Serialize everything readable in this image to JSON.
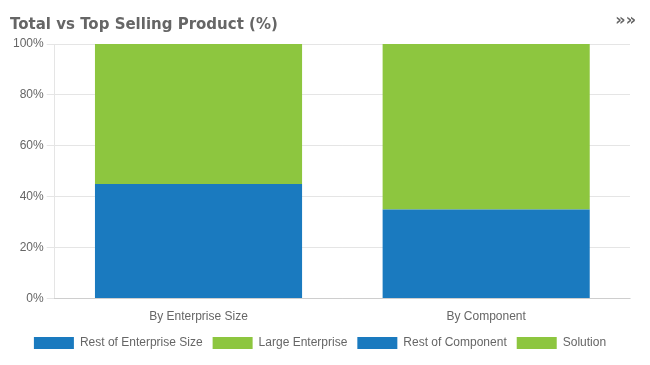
{
  "chart_data": {
    "type": "bar",
    "title": "Total vs Top Selling Product (%)",
    "categories": [
      "By Enterprise Size",
      "By Component"
    ],
    "series": [
      {
        "name": "Rest of Enterprise Size",
        "color": "#1a7abf",
        "values": [
          45,
          null
        ]
      },
      {
        "name": "Large Enterprise",
        "color": "#8dc63f",
        "values": [
          55,
          null
        ]
      },
      {
        "name": "Rest of Component",
        "color": "#1a7abf",
        "values": [
          null,
          35
        ]
      },
      {
        "name": "Solution",
        "color": "#8dc63f",
        "values": [
          null,
          65
        ]
      }
    ],
    "stacked": true,
    "ylim": [
      0,
      100
    ],
    "yticks": [
      {
        "value": 0,
        "label": "0%"
      },
      {
        "value": 20,
        "label": "20%"
      },
      {
        "value": 40,
        "label": "40%"
      },
      {
        "value": 60,
        "label": "60%"
      },
      {
        "value": 80,
        "label": "80%"
      },
      {
        "value": 100,
        "label": "100%"
      }
    ],
    "grid": true,
    "legend": "bottom",
    "annotations": [
      "»»"
    ]
  }
}
